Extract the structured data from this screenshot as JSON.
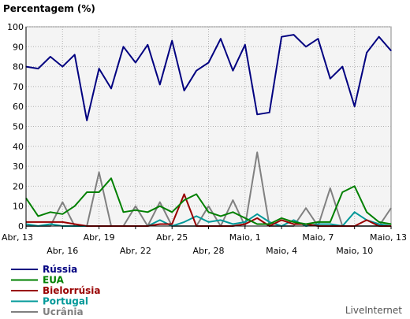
{
  "chart_data": {
    "type": "line",
    "title": "Percentagem (%)",
    "xlabel": "",
    "ylabel": "",
    "ylim": [
      0,
      100
    ],
    "y_ticks": [
      0,
      10,
      20,
      30,
      40,
      50,
      60,
      70,
      80,
      90,
      100
    ],
    "x_tick_labels": [
      "Abr, 13",
      "Abr, 16",
      "Abr, 19",
      "Abr, 22",
      "Abr, 25",
      "Abr, 28",
      "Maio, 1",
      "Maio, 4",
      "Maio, 7",
      "Maio, 10",
      "Maio, 13"
    ],
    "x_tick_start_index": 0,
    "x_tick_step": 6,
    "grid": true,
    "legend_position": "bottom-left",
    "series": [
      {
        "name": "Rússia",
        "color": "#000080",
        "values": [
          80,
          79,
          85,
          80,
          86,
          53,
          79,
          69,
          90,
          82,
          91,
          71,
          93,
          68,
          78,
          82,
          94,
          78,
          91,
          56,
          57,
          95,
          96,
          90,
          94,
          74,
          80,
          60,
          87,
          95,
          88
        ]
      },
      {
        "name": "EUA",
        "color": "#008000",
        "values": [
          14,
          5,
          7,
          6,
          10,
          17,
          17,
          24,
          7,
          8,
          7,
          10,
          7,
          13,
          16,
          7,
          5,
          7,
          4,
          1,
          1,
          4,
          2,
          1,
          2,
          2,
          17,
          20,
          7,
          2,
          1
        ]
      },
      {
        "name": "Bielorrúsia",
        "color": "#990000",
        "values": [
          2,
          2,
          2,
          2,
          1,
          0,
          0,
          0,
          0,
          0,
          0,
          1,
          1,
          16,
          0,
          0,
          0,
          0,
          1,
          4,
          0,
          3,
          1,
          1,
          0,
          0,
          0,
          0,
          3,
          0,
          0
        ]
      },
      {
        "name": "Portugal",
        "color": "#009999",
        "values": [
          1,
          0,
          1,
          0,
          0,
          0,
          0,
          0,
          0,
          0,
          0,
          3,
          0,
          2,
          5,
          2,
          3,
          1,
          2,
          6,
          2,
          0,
          3,
          0,
          1,
          1,
          0,
          7,
          3,
          1,
          0
        ]
      },
      {
        "name": "Ucrânia",
        "color": "#808080",
        "values": [
          0,
          0,
          0,
          12,
          0,
          0,
          27,
          0,
          0,
          10,
          0,
          12,
          0,
          0,
          0,
          10,
          0,
          13,
          0,
          37,
          0,
          0,
          0,
          9,
          0,
          19,
          0,
          0,
          0,
          0,
          9
        ]
      }
    ]
  },
  "watermark": "LiveInternet"
}
